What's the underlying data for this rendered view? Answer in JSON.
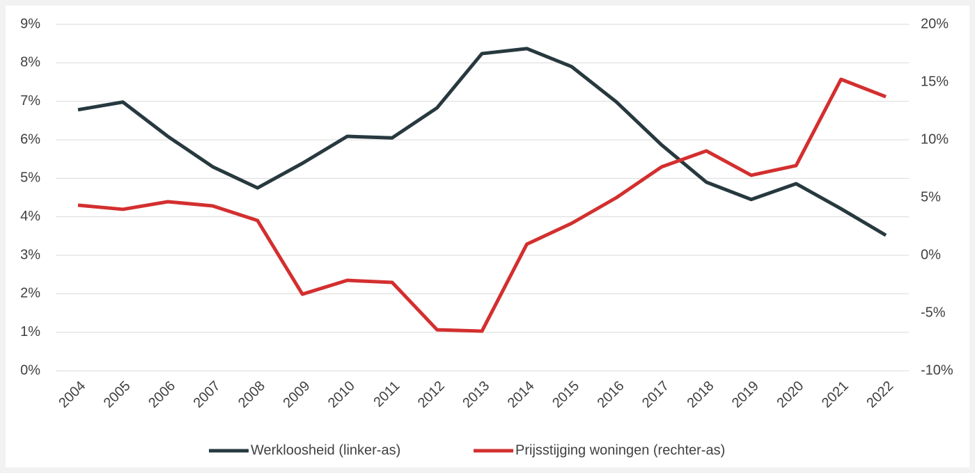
{
  "chart_data": {
    "type": "line",
    "x": [
      "2004",
      "2005",
      "2006",
      "2007",
      "2008",
      "2009",
      "2010",
      "2011",
      "2012",
      "2013",
      "2014",
      "2015",
      "2016",
      "2017",
      "2018",
      "2019",
      "2020",
      "2021",
      "2022"
    ],
    "series": [
      {
        "name": "Werkloosheid (linker-as)",
        "color": "#27393f",
        "axis": "y",
        "values": [
          6.78,
          6.98,
          6.09,
          5.3,
          4.75,
          5.39,
          6.09,
          6.05,
          6.83,
          8.24,
          8.37,
          7.9,
          6.98,
          5.87,
          4.9,
          4.45,
          4.86,
          4.21,
          3.52
        ]
      },
      {
        "name": "Prijsstijging woningen (rechter-as)",
        "color": "#d32f2f",
        "axis": "y2",
        "values": [
          4.34,
          3.98,
          4.64,
          4.28,
          3.01,
          -3.37,
          -2.17,
          -2.35,
          -6.45,
          -6.57,
          0.96,
          2.77,
          5.0,
          7.65,
          9.04,
          6.93,
          7.77,
          15.24,
          13.73
        ]
      }
    ],
    "ylim": [
      0,
      9
    ],
    "yticks": [
      {
        "value": 0,
        "label": "0%"
      },
      {
        "value": 1,
        "label": "1%"
      },
      {
        "value": 2,
        "label": "2%"
      },
      {
        "value": 3,
        "label": "3%"
      },
      {
        "value": 4,
        "label": "4%"
      },
      {
        "value": 5,
        "label": "5%"
      },
      {
        "value": 6,
        "label": "6%"
      },
      {
        "value": 7,
        "label": "7%"
      },
      {
        "value": 8,
        "label": "8%"
      },
      {
        "value": 9,
        "label": "9%"
      }
    ],
    "y2lim": [
      -10,
      20
    ],
    "y2ticks": [
      {
        "value": -10,
        "label": "-10%"
      },
      {
        "value": -5,
        "label": "-5%"
      },
      {
        "value": 0,
        "label": "0%"
      },
      {
        "value": 5,
        "label": "5%"
      },
      {
        "value": 10,
        "label": "10%"
      },
      {
        "value": 15,
        "label": "15%"
      },
      {
        "value": 20,
        "label": "20%"
      }
    ],
    "grid": true,
    "legend": "bottom"
  }
}
